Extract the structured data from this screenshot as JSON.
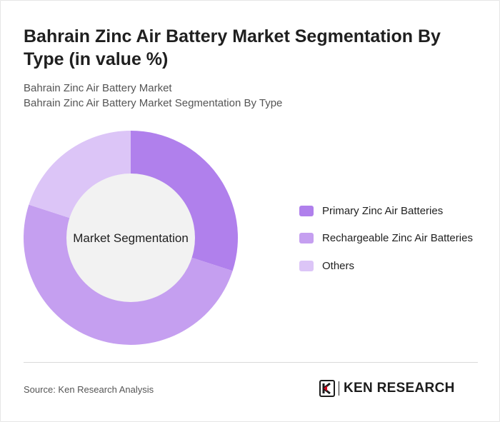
{
  "header": {
    "title": "Bahrain Zinc Air Battery Market Segmentation By Type (in value %)",
    "subtitle_1": "Bahrain Zinc Air Battery Market",
    "subtitle_2": "Bahrain Zinc Air Battery Market Segmentation By Type"
  },
  "chart_data": {
    "type": "pie",
    "variant": "donut",
    "center_label": "Market Segmentation",
    "categories": [
      "Primary Zinc Air Batteries",
      "Rechargeable Zinc Air Batteries",
      "Others"
    ],
    "values": [
      30,
      50,
      20
    ],
    "colors": [
      "#b080ec",
      "#c59ff0",
      "#dcc5f7"
    ],
    "legend_position": "right"
  },
  "footer": {
    "source": "Source: Ken Research Analysis",
    "logo_text": "KEN RESEARCH",
    "logo_icon": "ken-research-logo-icon"
  }
}
